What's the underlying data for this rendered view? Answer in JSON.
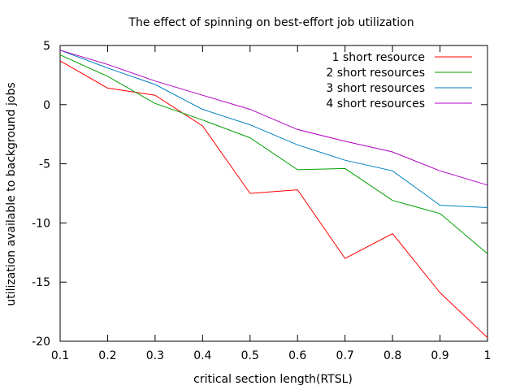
{
  "chart_data": {
    "type": "line",
    "title": "The effect of spinning on best-effort job utilization",
    "xlabel": "critical section length(RTSL)",
    "ylabel": "utilization available to background jobs",
    "xlim": [
      0.1,
      1.0
    ],
    "ylim": [
      -20,
      5
    ],
    "xticks": [
      0.1,
      0.2,
      0.3,
      0.4,
      0.5,
      0.6,
      0.7,
      0.8,
      0.9,
      1.0
    ],
    "xtick_labels": [
      "0.1",
      "0.2",
      "0.3",
      "0.4",
      "0.5",
      "0.6",
      "0.7",
      "0.8",
      "0.9",
      "1"
    ],
    "yticks": [
      5,
      0,
      -5,
      -10,
      -15,
      -20
    ],
    "ytick_labels": [
      "5",
      "0",
      "-5",
      "-10",
      "-15",
      "-20"
    ],
    "grid": false,
    "legend_position": "top-right",
    "x": [
      0.1,
      0.2,
      0.3,
      0.4,
      0.5,
      0.6,
      0.7,
      0.8,
      0.9,
      1.0
    ],
    "series": [
      {
        "name": "1 short resource",
        "color": "#ff0000",
        "values": [
          3.7,
          1.4,
          0.8,
          -1.8,
          -7.5,
          -7.2,
          -13.0,
          -10.9,
          -15.9,
          -19.7
        ]
      },
      {
        "name": "2 short resources",
        "color": "#00a000",
        "values": [
          4.2,
          2.4,
          0.1,
          -1.3,
          -2.8,
          -5.5,
          -5.4,
          -8.1,
          -9.2,
          -12.6
        ]
      },
      {
        "name": "3 short resources",
        "color": "#0080c0",
        "values": [
          4.6,
          3.1,
          1.7,
          -0.4,
          -1.7,
          -3.4,
          -4.7,
          -5.6,
          -8.5,
          -8.7
        ]
      },
      {
        "name": "4 short resources",
        "color": "#b000c0",
        "values": [
          4.6,
          3.4,
          2.0,
          0.8,
          -0.4,
          -2.1,
          -3.1,
          -4.0,
          -5.6,
          -6.8
        ]
      }
    ]
  }
}
